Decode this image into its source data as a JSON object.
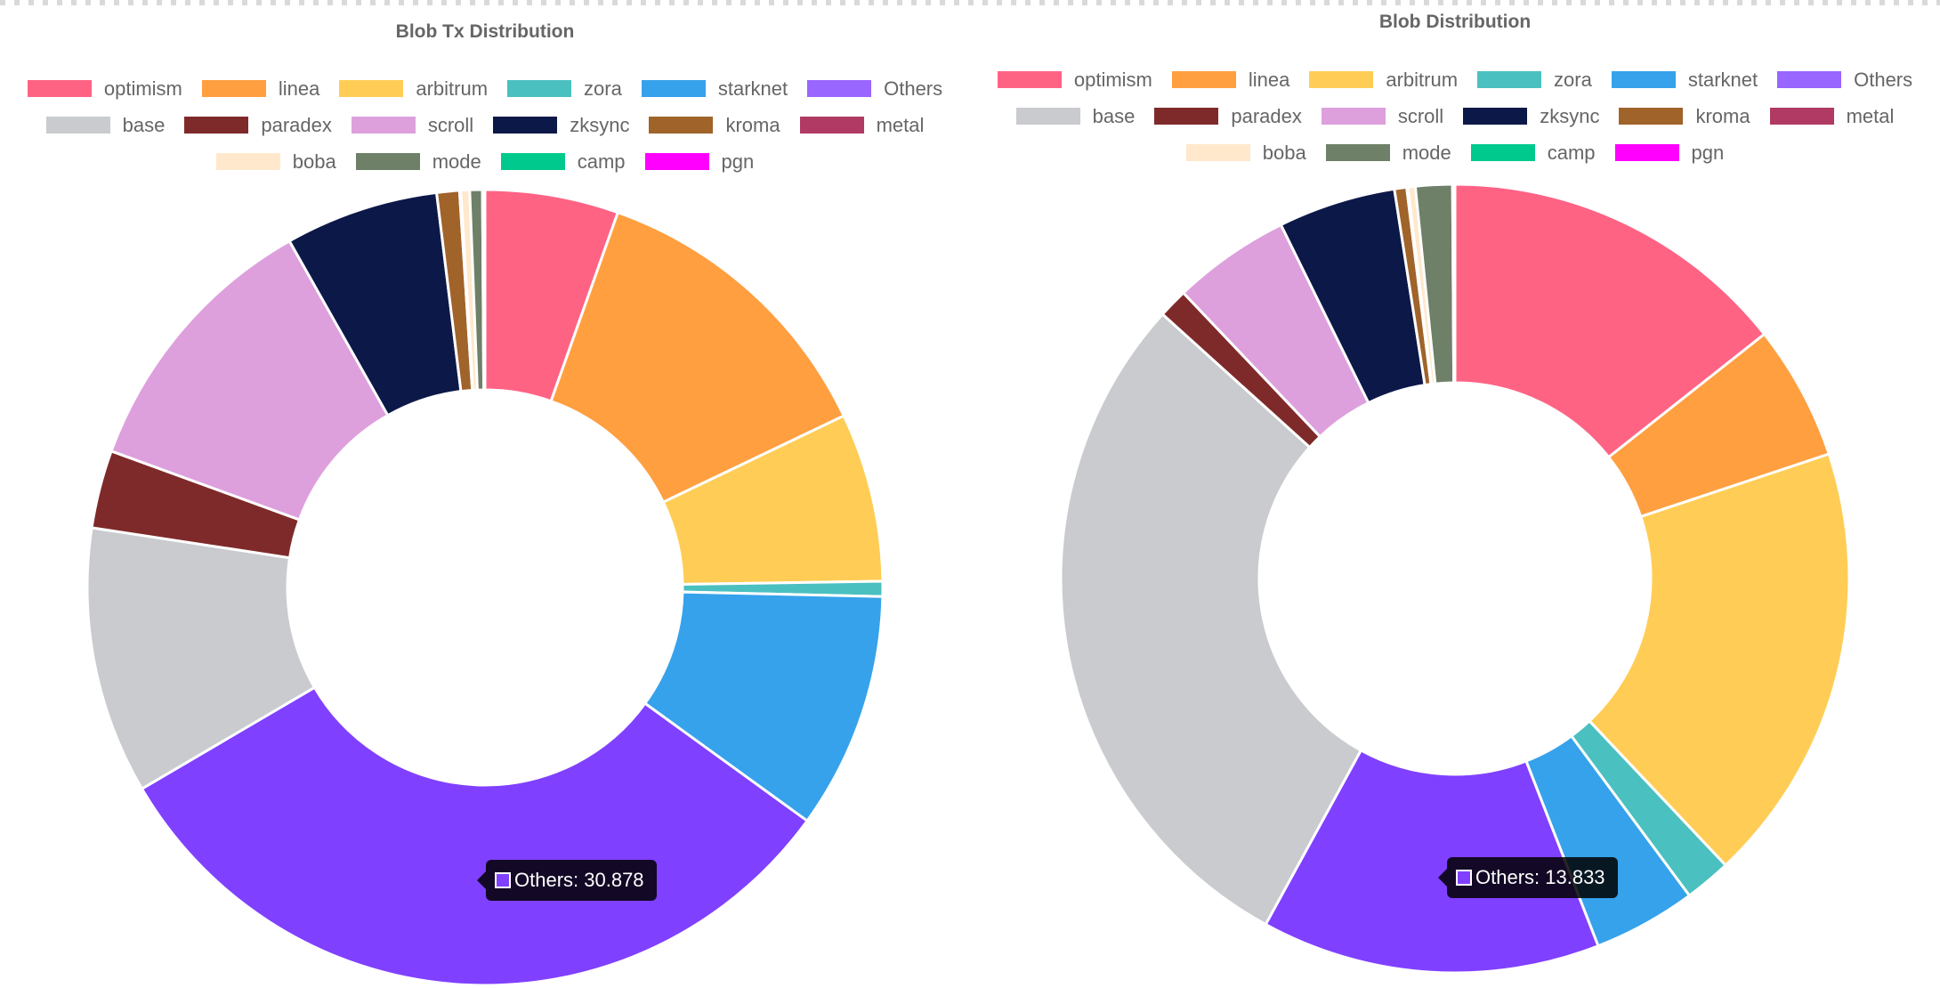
{
  "chart_data": [
    {
      "type": "doughnut",
      "title": "Blob Tx Distribution",
      "legend": {
        "position": "top"
      },
      "labels": [
        "optimism",
        "linea",
        "arbitrum",
        "zora",
        "starknet",
        "Others",
        "base",
        "paradex",
        "scroll",
        "zksync",
        "kroma",
        "metal",
        "boba",
        "mode",
        "camp",
        "pgn"
      ],
      "colors": [
        "#ff6384",
        "#ff9f40",
        "#ffcd56",
        "#4bc0c0",
        "#36a2eb",
        "#9966ff",
        "#c9cbcf",
        "#7f2a2a",
        "#dda0dd",
        "#0c1848",
        "#a0632a",
        "#b03a64",
        "#ffe8cc",
        "#6e8067",
        "#00c98d",
        "#ff00ff"
      ],
      "slice_colors": [
        "#ff6384",
        "#ff9f40",
        "#ffcd56",
        "#4bc0c0",
        "#36a2eb",
        "#8040ff",
        "#c9cbcf",
        "#7f2a2a",
        "#dda0dd",
        "#0c1848",
        "#a0632a",
        "#b03a64",
        "#ffe8cc",
        "#6e8067",
        "#00c98d",
        "#ff00ff"
      ],
      "values": [
        5.3,
        12.2,
        6.7,
        0.6,
        9.4,
        30.878,
        10.6,
        3.1,
        11.0,
        6.1,
        0.9,
        0.05,
        0.35,
        0.5,
        0.05,
        0.05
      ],
      "tooltip": {
        "label": "Others",
        "value": "30.878",
        "text": "Others: 30.878"
      }
    },
    {
      "type": "doughnut",
      "title": "Blob Distribution",
      "legend": {
        "position": "top"
      },
      "labels": [
        "optimism",
        "linea",
        "arbitrum",
        "zora",
        "starknet",
        "Others",
        "base",
        "paradex",
        "scroll",
        "zksync",
        "kroma",
        "metal",
        "boba",
        "mode",
        "camp",
        "pgn"
      ],
      "colors": [
        "#ff6384",
        "#ff9f40",
        "#ffcd56",
        "#4bc0c0",
        "#36a2eb",
        "#9966ff",
        "#c9cbcf",
        "#7f2a2a",
        "#dda0dd",
        "#0c1848",
        "#a0632a",
        "#b03a64",
        "#ffe8cc",
        "#6e8067",
        "#00c98d",
        "#ff00ff"
      ],
      "slice_colors": [
        "#ff6384",
        "#ff9f40",
        "#ffcd56",
        "#4bc0c0",
        "#36a2eb",
        "#8040ff",
        "#c9cbcf",
        "#7f2a2a",
        "#dda0dd",
        "#0c1848",
        "#a0632a",
        "#b03a64",
        "#ffe8cc",
        "#6e8067",
        "#00c98d",
        "#ff00ff"
      ],
      "values": [
        14.3,
        5.5,
        18.0,
        1.9,
        4.2,
        13.833,
        28.6,
        1.2,
        4.8,
        4.8,
        0.5,
        0.05,
        0.3,
        1.5,
        0.05,
        0.05
      ],
      "tooltip": {
        "label": "Others",
        "value": "13.833",
        "text": "Others: 13.833"
      }
    }
  ]
}
